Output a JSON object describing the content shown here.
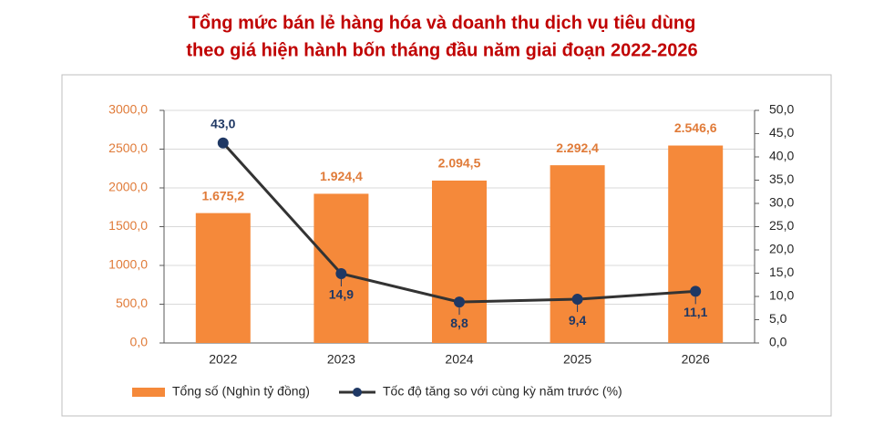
{
  "chart_data": {
    "type": "bar_line",
    "title": [
      "Tổng mức bán lẻ hàng hóa và doanh thu dịch vụ tiêu dùng",
      "theo giá hiện hành bốn tháng đầu năm giai đoạn 2022-2026"
    ],
    "categories": [
      "2022",
      "2023",
      "2024",
      "2025",
      "2026"
    ],
    "series": [
      {
        "name": "Tổng số (Nghìn tỷ đồng)",
        "type": "bar",
        "color": "#f5893a",
        "values": [
          1675.2,
          1924.4,
          2094.5,
          2292.4,
          2546.6
        ],
        "value_labels": [
          "1.675,2",
          "1.924,4",
          "2.094,5",
          "2.292,4",
          "2.546,6"
        ]
      },
      {
        "name": "Tốc độ tăng so với cùng kỳ năm trước (%)",
        "type": "line",
        "axis": "y2",
        "color": "#1f3864",
        "line_color": "#333333",
        "values": [
          43.0,
          14.9,
          8.8,
          9.4,
          11.1
        ],
        "value_labels": [
          "43,0",
          "14,9",
          "8,8",
          "9,4",
          "11,1"
        ]
      }
    ],
    "ylim": [
      0,
      3000
    ],
    "yticks": [
      {
        "value": 0,
        "label": "0,0"
      },
      {
        "value": 500,
        "label": "500,0"
      },
      {
        "value": 1000,
        "label": "1000,0"
      },
      {
        "value": 1500,
        "label": "1500,0"
      },
      {
        "value": 2000,
        "label": "2000,0"
      },
      {
        "value": 2500,
        "label": "2500,0"
      },
      {
        "value": 3000,
        "label": "3000,0"
      }
    ],
    "y2lim": [
      0,
      50
    ],
    "y2ticks": [
      {
        "value": 0,
        "label": "0,0"
      },
      {
        "value": 5,
        "label": "5,0"
      },
      {
        "value": 10,
        "label": "10,0"
      },
      {
        "value": 15,
        "label": "15,0"
      },
      {
        "value": 20,
        "label": "20,0"
      },
      {
        "value": 25,
        "label": "25,0"
      },
      {
        "value": 30,
        "label": "30,0"
      },
      {
        "value": 35,
        "label": "35,0"
      },
      {
        "value": 40,
        "label": "40,0"
      },
      {
        "value": 45,
        "label": "45,0"
      },
      {
        "value": 50,
        "label": "50,0"
      }
    ],
    "grid": true,
    "legend": "bottom"
  }
}
